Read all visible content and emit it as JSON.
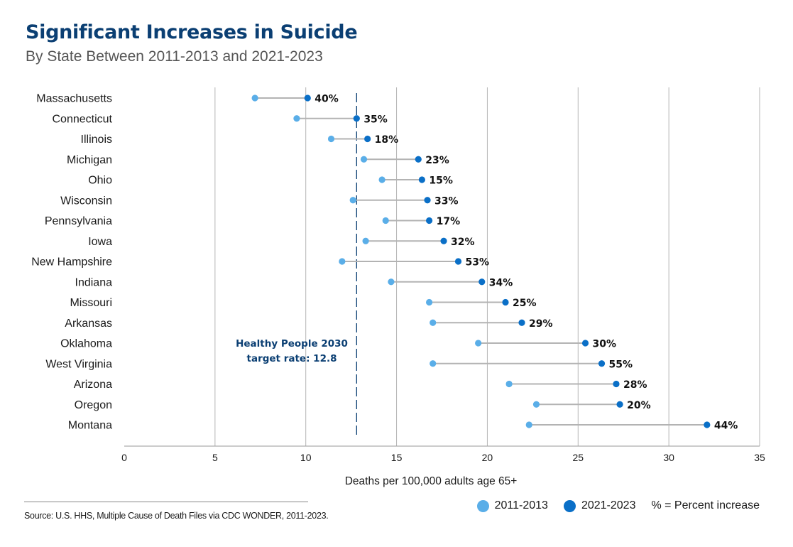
{
  "header": {
    "title": "Significant Increases in Suicide",
    "subtitle": "By State Between 2011-2013 and 2021-2023"
  },
  "colors": {
    "series_2011": "#5aaee8",
    "series_2021": "#0a6fc7",
    "connector": "#b3b3b3",
    "gridline": "#b5b5b5",
    "target_line": "#0b3f73"
  },
  "chart_data": {
    "type": "dumbbell",
    "xlabel": "Deaths per 100,000 adults age 65+",
    "xlim": [
      0,
      35
    ],
    "xticks": [
      0,
      5,
      10,
      15,
      20,
      25,
      30,
      35
    ],
    "categories": [
      "Massachusetts",
      "Connecticut",
      "Illinois",
      "Michigan",
      "Ohio",
      "Wisconsin",
      "Pennsylvania",
      "Iowa",
      "New Hampshire",
      "Indiana",
      "Missouri",
      "Arkansas",
      "Oklahoma",
      "West Virginia",
      "Arizona",
      "Oregon",
      "Montana"
    ],
    "series": [
      {
        "name": "2011-2013",
        "values": [
          7.2,
          9.5,
          11.4,
          13.2,
          14.2,
          12.6,
          14.4,
          13.3,
          12.0,
          14.7,
          16.8,
          17.0,
          19.5,
          17.0,
          21.2,
          22.7,
          22.3
        ]
      },
      {
        "name": "2021-2023",
        "values": [
          10.1,
          12.8,
          13.4,
          16.2,
          16.4,
          16.7,
          16.8,
          17.6,
          18.4,
          19.7,
          21.0,
          21.9,
          25.4,
          26.3,
          27.1,
          27.3,
          32.1
        ]
      }
    ],
    "percent_increase": [
      "40%",
      "35%",
      "18%",
      "23%",
      "15%",
      "33%",
      "17%",
      "32%",
      "53%",
      "34%",
      "25%",
      "29%",
      "30%",
      "55%",
      "28%",
      "20%",
      "44%"
    ],
    "reference_line": {
      "value": 12.8,
      "label_line1": "Healthy People 2030",
      "label_line2": "target rate: 12.8"
    }
  },
  "legend": {
    "item1": "2011-2013",
    "item2": "2021-2023",
    "note": "% = Percent increase"
  },
  "source": "Source: U.S. HHS, Multiple Cause of Death Files via CDC WONDER, 2011-2023."
}
